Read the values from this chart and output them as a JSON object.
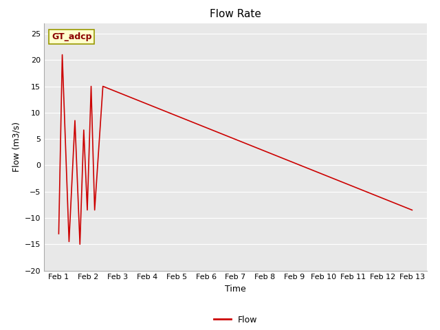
{
  "title": "Flow Rate",
  "xlabel": "Time",
  "ylabel": "Flow (m3/s)",
  "legend_label": "Flow",
  "annotation_text": "GT_adcp",
  "line_color": "#cc0000",
  "plot_bg_color": "#e8e8e8",
  "ylim": [
    -20,
    27
  ],
  "yticks": [
    -20,
    -15,
    -10,
    -5,
    0,
    5,
    10,
    15,
    20,
    25
  ],
  "x_dates": [
    "Feb 1",
    "Feb 2",
    "Feb 3",
    "Feb 4",
    "Feb 5",
    "Feb 6",
    "Feb 7",
    "Feb 8",
    "Feb 9",
    "Feb 10",
    "Feb 11",
    "Feb 12",
    "Feb 13"
  ],
  "x_values": [
    1,
    2,
    3,
    4,
    5,
    6,
    7,
    8,
    9,
    10,
    11,
    12,
    13
  ],
  "xlim": [
    0.5,
    13.5
  ],
  "x_line": [
    1.0,
    1.12,
    1.35,
    1.55,
    1.72,
    1.85,
    1.97,
    2.1,
    2.22,
    2.5,
    13.0
  ],
  "y_line": [
    -13.0,
    21.0,
    -14.5,
    8.5,
    -15.0,
    6.7,
    -8.5,
    15.0,
    -8.5,
    15.0,
    -8.5
  ]
}
